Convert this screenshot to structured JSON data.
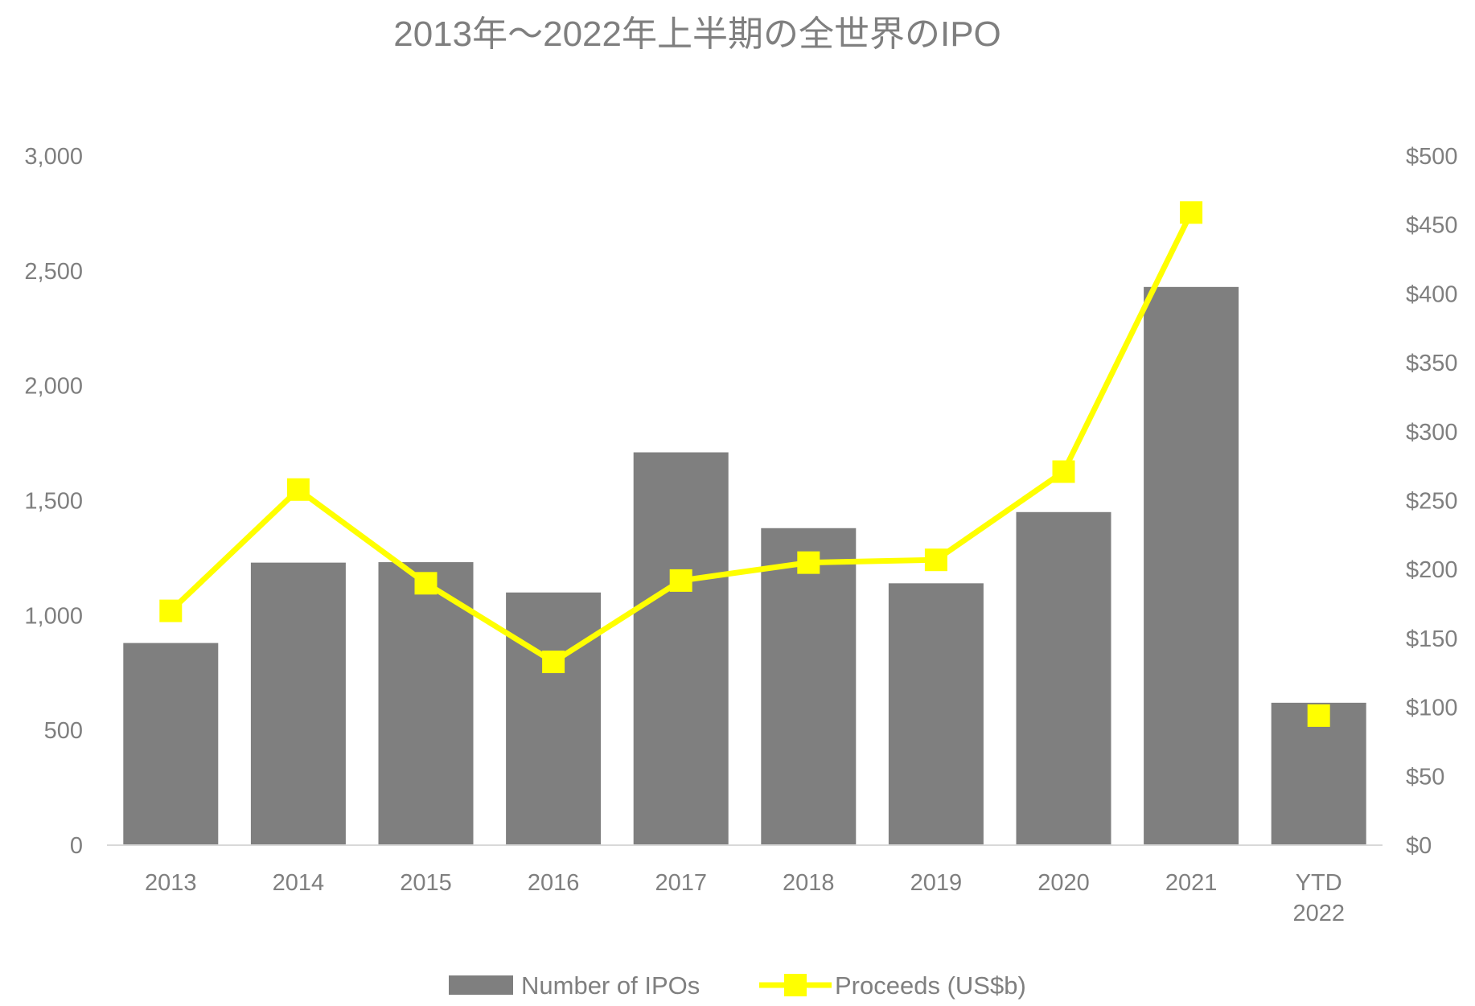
{
  "chart_data": {
    "type": "bar+line",
    "title": "2013年～2022年上半期の全世界のIPO",
    "categories": [
      "2013",
      "2014",
      "2015",
      "2016",
      "2017",
      "2018",
      "2019",
      "2020",
      "2021",
      "YTD 2022"
    ],
    "category_lines": [
      [
        "2013"
      ],
      [
        "2014"
      ],
      [
        "2015"
      ],
      [
        "2016"
      ],
      [
        "2017"
      ],
      [
        "2018"
      ],
      [
        "2019"
      ],
      [
        "2020"
      ],
      [
        "2021"
      ],
      [
        "YTD",
        "2022"
      ]
    ],
    "series": [
      {
        "name": "Number of IPOs",
        "type": "bar",
        "axis": "left",
        "color": "#7f7f7f",
        "values": [
          880,
          1230,
          1232,
          1100,
          1710,
          1380,
          1140,
          1450,
          2430,
          620
        ]
      },
      {
        "name": "Proceeds (US$b)",
        "type": "line",
        "axis": "right",
        "color": "#ffff00",
        "marker": "square",
        "values": [
          170,
          258,
          190,
          133,
          192,
          205,
          207,
          271,
          459,
          94
        ],
        "line_break_before_last": true
      }
    ],
    "y_left": {
      "ylim": [
        0,
        3000
      ],
      "ticks": [
        "0",
        "500",
        "1,000",
        "1,500",
        "2,000",
        "2,500",
        "3,000"
      ]
    },
    "y_right": {
      "ylim": [
        0,
        500
      ],
      "ticks": [
        "$0",
        "$50",
        "$100",
        "$150",
        "$200",
        "$250",
        "$300",
        "$350",
        "$400",
        "$450",
        "$500"
      ]
    },
    "grid": false,
    "legend": {
      "position": "bottom",
      "items": [
        "Number of IPOs",
        "Proceeds (US$b)"
      ]
    }
  }
}
